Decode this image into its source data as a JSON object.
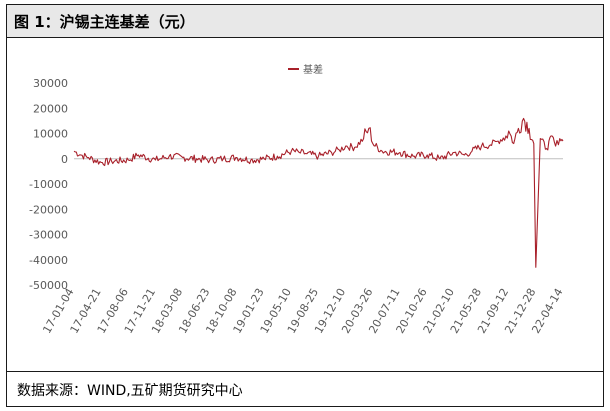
{
  "header": {
    "title": "图 1：沪锡主连基差（元）"
  },
  "footer": {
    "source": "数据来源：WIND,五矿期货研究中心"
  },
  "chart_data": {
    "type": "line",
    "title": "",
    "xlabel": "",
    "ylabel": "",
    "ylim": [
      -50000,
      30000
    ],
    "yticks": [
      30000,
      20000,
      10000,
      0,
      -10000,
      -20000,
      -30000,
      -40000,
      -50000
    ],
    "xticks": [
      "17-01-04",
      "17-04-21",
      "17-08-06",
      "17-11-21",
      "18-03-08",
      "18-06-23",
      "18-10-08",
      "19-01-23",
      "19-05-10",
      "19-08-25",
      "19-12-10",
      "20-03-26",
      "20-07-11",
      "20-10-26",
      "21-02-10",
      "21-05-28",
      "21-09-12",
      "21-12-28",
      "22-04-14"
    ],
    "grid": false,
    "legend": "top-center",
    "series": [
      {
        "name": "基差",
        "color": "#a8202a",
        "x": [
          "17-01-04",
          "17-02-01",
          "17-03-01",
          "17-04-21",
          "17-06-01",
          "17-08-06",
          "17-09-15",
          "17-11-21",
          "18-01-15",
          "18-03-08",
          "18-05-01",
          "18-06-23",
          "18-08-15",
          "18-10-08",
          "18-12-01",
          "19-01-23",
          "19-03-15",
          "19-05-10",
          "19-06-10",
          "19-07-10",
          "19-08-25",
          "19-10-15",
          "19-11-15",
          "19-12-10",
          "20-01-15",
          "20-02-20",
          "20-03-10",
          "20-03-26",
          "20-05-01",
          "20-07-11",
          "20-09-01",
          "20-10-26",
          "20-12-15",
          "21-02-10",
          "21-03-20",
          "21-04-20",
          "21-05-28",
          "21-07-01",
          "21-08-01",
          "21-09-01",
          "21-09-12",
          "21-10-01",
          "21-10-20",
          "21-11-10",
          "21-12-01",
          "21-12-20",
          "21-12-28",
          "22-01-15",
          "22-02-10",
          "22-03-01",
          "22-03-15",
          "22-04-01",
          "22-04-14"
        ],
        "values": [
          3000,
          1500,
          500,
          -1500,
          -1000,
          -500,
          1500,
          -500,
          1000,
          500,
          0,
          -500,
          0,
          500,
          -500,
          0,
          1000,
          3000,
          2500,
          2000,
          1000,
          2500,
          3500,
          5000,
          4500,
          8000,
          12000,
          6000,
          3000,
          2500,
          1000,
          1500,
          0,
          2500,
          1500,
          3000,
          5000,
          5500,
          7000,
          9000,
          11000,
          6000,
          12000,
          16000,
          12000,
          6000,
          -43000,
          8000,
          4000,
          9000,
          5000,
          8000,
          7000
        ]
      }
    ]
  }
}
